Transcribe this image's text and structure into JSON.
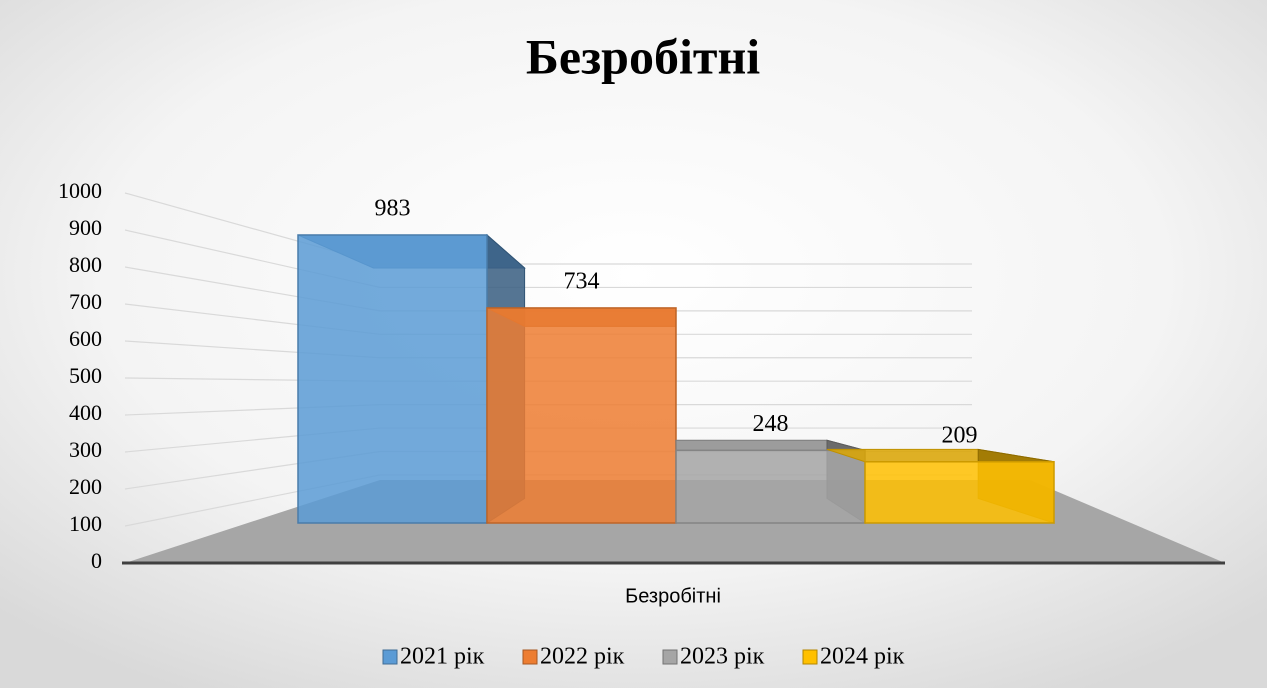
{
  "chart_data": {
    "type": "bar3d",
    "title": "Безробітні",
    "categories": [
      "Безробітні"
    ],
    "series": [
      {
        "name": "2021 рік",
        "color": "#5b9bd5",
        "values": [
          983
        ]
      },
      {
        "name": "2022 рік",
        "color": "#ed7d31",
        "values": [
          734
        ]
      },
      {
        "name": "2023 рік",
        "color": "#a5a5a5",
        "values": [
          248
        ]
      },
      {
        "name": "2024 рік",
        "color": "#ffc000",
        "values": [
          209
        ]
      }
    ],
    "ylim": [
      0,
      1000
    ],
    "yticks": [
      0,
      100,
      200,
      300,
      400,
      500,
      600,
      700,
      800,
      900,
      1000
    ],
    "grid": true,
    "legend": "bottom"
  }
}
